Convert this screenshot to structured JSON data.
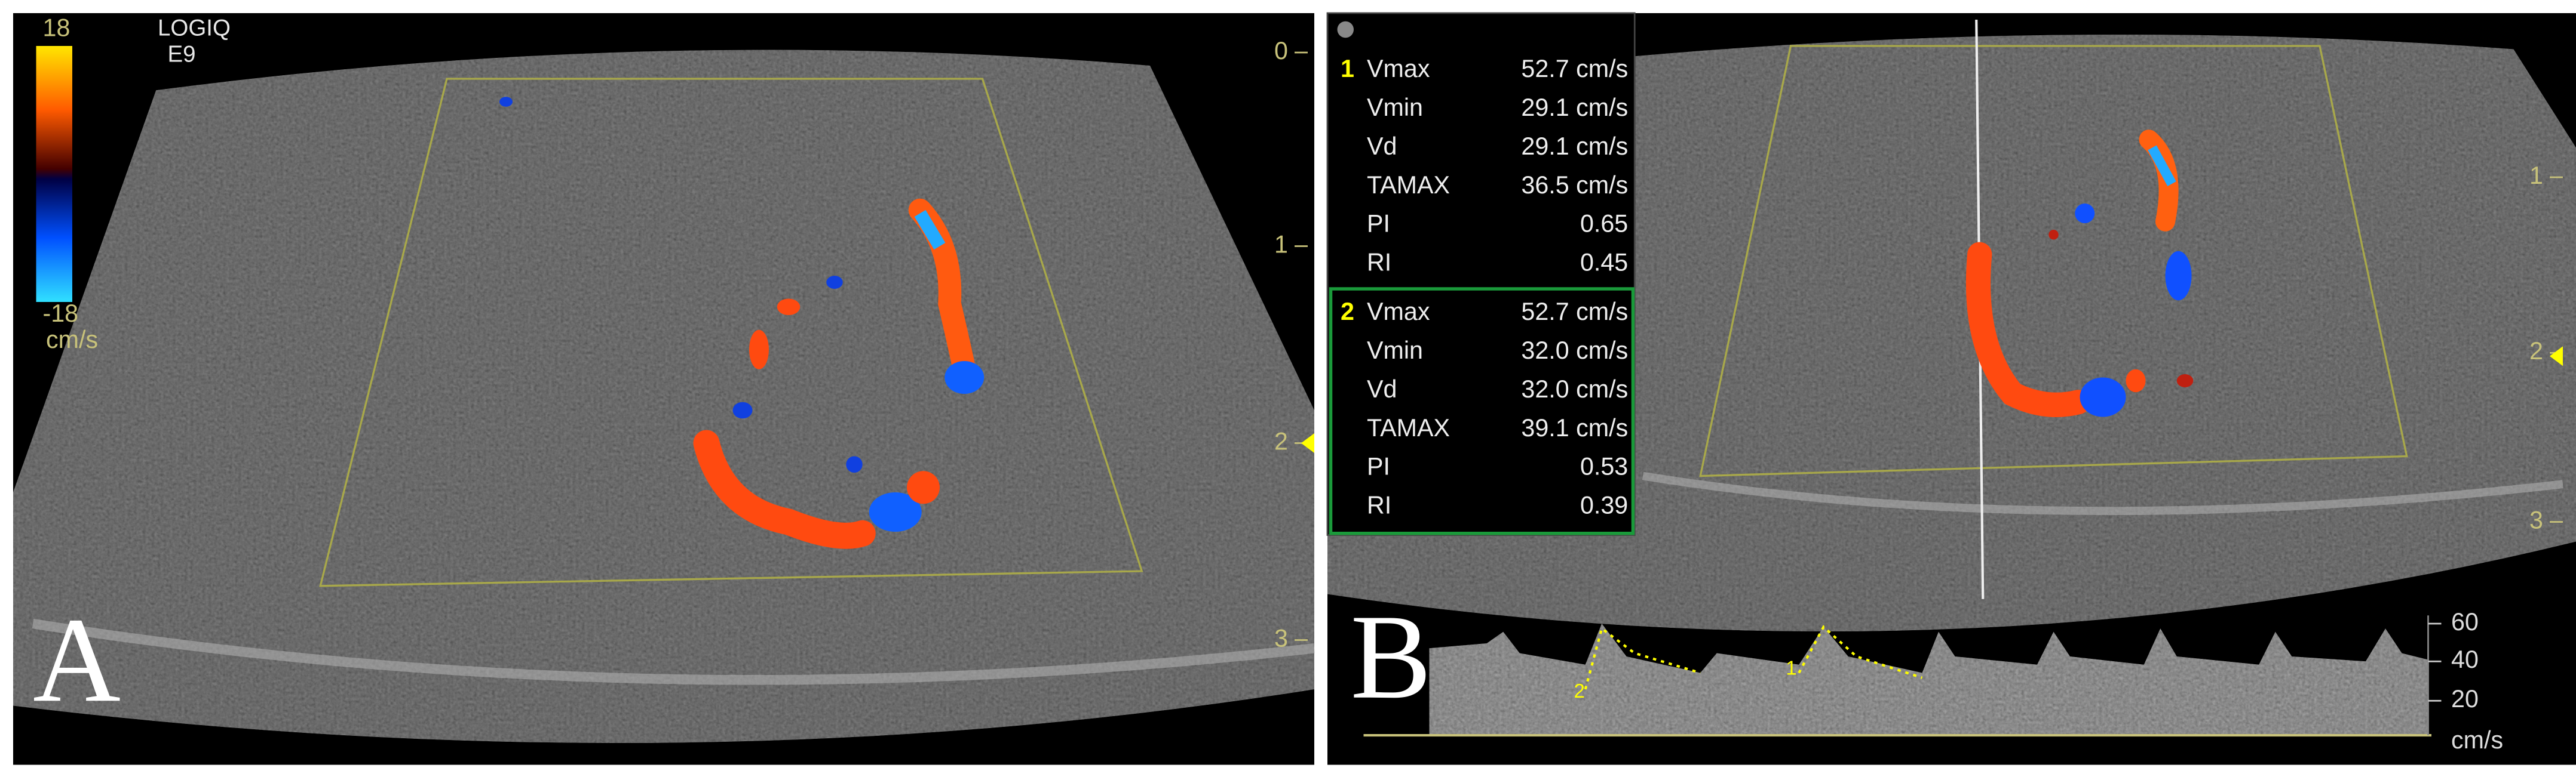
{
  "panel_a": {
    "label": "A",
    "system": "LOGIQ",
    "model": "E9",
    "color_bar": {
      "top": "18",
      "bottom": "-18",
      "unit": "cm/s"
    },
    "depth_marks": [
      "0",
      "1",
      "2",
      "3"
    ]
  },
  "panel_b": {
    "label": "B",
    "depth_marks": [
      "1",
      "2",
      "3"
    ],
    "measurements": [
      {
        "index": "1",
        "rows": [
          [
            "Vmax",
            "52.7 cm/s"
          ],
          [
            "Vmin",
            "29.1 cm/s"
          ],
          [
            "Vd",
            "29.1 cm/s"
          ],
          [
            "TAMAX",
            "36.5 cm/s"
          ],
          [
            "PI",
            "0.65"
          ],
          [
            "RI",
            "0.45"
          ]
        ]
      },
      {
        "index": "2",
        "rows": [
          [
            "Vmax",
            "52.7 cm/s"
          ],
          [
            "Vmin",
            "32.0 cm/s"
          ],
          [
            "Vd",
            "32.0 cm/s"
          ],
          [
            "TAMAX",
            "39.1 cm/s"
          ],
          [
            "PI",
            "0.53"
          ],
          [
            "RI",
            "0.39"
          ]
        ]
      }
    ],
    "spectrum": {
      "scale": [
        "60",
        "40",
        "20"
      ],
      "unit": "cm/s",
      "cycle_marks": [
        "2",
        "1"
      ]
    }
  }
}
